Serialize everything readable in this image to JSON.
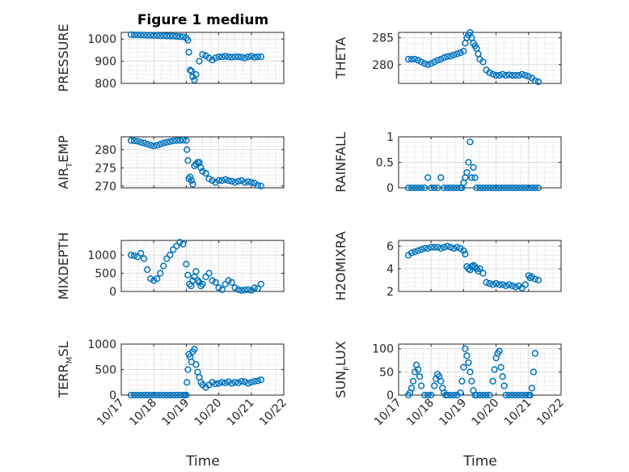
{
  "chart_data": {
    "type": "scatter",
    "title": "Figure 1 medium",
    "xlabel": "Time",
    "x_ticks": [
      "10/17",
      "10/18",
      "10/19",
      "10/20",
      "10/21",
      "10/22"
    ],
    "x_tick_values": [
      0,
      1,
      2,
      3,
      4,
      5
    ],
    "xlim": [
      0,
      5
    ],
    "marker_color": "#0072BD",
    "grid": true,
    "panels": [
      {
        "name": "pressure",
        "ylabel": "PRESSURE",
        "ylim": [
          800,
          1030
        ],
        "yticks": [
          800,
          900,
          1000
        ],
        "x": [
          0.3,
          0.4,
          0.5,
          0.6,
          0.7,
          0.8,
          0.9,
          1.0,
          1.1,
          1.2,
          1.3,
          1.4,
          1.5,
          1.6,
          1.7,
          1.8,
          1.9,
          2.0,
          2.05,
          2.08,
          2.12,
          2.16,
          2.2,
          2.25,
          2.3,
          2.4,
          2.5,
          2.6,
          2.7,
          2.8,
          2.9,
          3.0,
          3.1,
          3.2,
          3.3,
          3.4,
          3.5,
          3.6,
          3.7,
          3.8,
          3.9,
          4.0,
          4.1,
          4.2,
          4.3
        ],
        "y": [
          1020,
          1019,
          1019,
          1018,
          1018,
          1017,
          1017,
          1016,
          1016,
          1015,
          1015,
          1014,
          1014,
          1013,
          1012,
          1011,
          1010,
          1005,
          995,
          940,
          860,
          855,
          830,
          815,
          840,
          900,
          930,
          925,
          915,
          905,
          915,
          920,
          920,
          922,
          920,
          918,
          920,
          920,
          918,
          915,
          920,
          922,
          918,
          920,
          920
        ]
      },
      {
        "name": "theta",
        "ylabel": "THETA",
        "ylim": [
          276.5,
          286
        ],
        "yticks": [
          280,
          285
        ],
        "x": [
          0.3,
          0.4,
          0.5,
          0.6,
          0.7,
          0.8,
          0.9,
          1.0,
          1.1,
          1.2,
          1.3,
          1.4,
          1.5,
          1.6,
          1.7,
          1.8,
          1.9,
          2.0,
          2.05,
          2.1,
          2.15,
          2.2,
          2.25,
          2.3,
          2.35,
          2.4,
          2.45,
          2.5,
          2.6,
          2.7,
          2.8,
          2.9,
          3.0,
          3.1,
          3.2,
          3.3,
          3.4,
          3.5,
          3.6,
          3.7,
          3.8,
          3.9,
          4.0,
          4.1,
          4.2,
          4.3
        ],
        "y": [
          281.0,
          281.0,
          281.0,
          280.8,
          280.5,
          280.2,
          280.0,
          280.2,
          280.5,
          280.8,
          281.0,
          281.3,
          281.5,
          281.6,
          281.8,
          282.0,
          282.2,
          282.5,
          284.0,
          285.0,
          285.5,
          286.0,
          285.0,
          284.0,
          283.5,
          283.0,
          282.0,
          281.0,
          280.5,
          279.0,
          278.5,
          278.2,
          278.0,
          278.0,
          278.2,
          278.0,
          278.1,
          278.0,
          278.0,
          278.0,
          278.2,
          278.0,
          277.8,
          277.5,
          277.0,
          276.8
        ]
      },
      {
        "name": "air-temp",
        "ylabel": "AIR",
        "ylabel_sub": "T",
        "ylabel_tail": "EMP",
        "ylim": [
          269.5,
          283.5
        ],
        "yticks": [
          270,
          275,
          280
        ],
        "x": [
          0.3,
          0.4,
          0.5,
          0.6,
          0.7,
          0.8,
          0.9,
          1.0,
          1.1,
          1.2,
          1.3,
          1.4,
          1.5,
          1.6,
          1.7,
          1.8,
          1.9,
          2.0,
          2.02,
          2.05,
          2.08,
          2.12,
          2.16,
          2.2,
          2.25,
          2.3,
          2.35,
          2.4,
          2.45,
          2.5,
          2.6,
          2.7,
          2.8,
          2.9,
          3.0,
          3.1,
          3.2,
          3.3,
          3.4,
          3.5,
          3.6,
          3.7,
          3.8,
          3.9,
          4.0,
          4.1,
          4.2,
          4.3
        ],
        "y": [
          282.5,
          282.4,
          282.3,
          282.0,
          281.8,
          281.5,
          281.2,
          281.0,
          281.2,
          281.5,
          281.8,
          282.0,
          282.2,
          282.4,
          282.5,
          282.5,
          282.6,
          282.5,
          280.0,
          277.0,
          272.0,
          272.5,
          271.5,
          270.5,
          275.5,
          276.0,
          276.5,
          276.5,
          275.0,
          274.0,
          273.5,
          272.0,
          271.5,
          271.0,
          271.5,
          271.5,
          271.8,
          271.5,
          271.3,
          271.0,
          271.3,
          271.5,
          271.0,
          271.2,
          271.0,
          270.8,
          270.2,
          270.0
        ]
      },
      {
        "name": "rainfall",
        "ylabel": "RAINFALL",
        "ylim": [
          0,
          1
        ],
        "yticks": [
          0,
          0.5,
          1
        ],
        "x": [
          0.3,
          0.4,
          0.5,
          0.6,
          0.7,
          0.8,
          0.9,
          1.0,
          1.1,
          1.2,
          1.3,
          1.4,
          1.5,
          1.6,
          1.7,
          1.8,
          1.9,
          1.95,
          2.0,
          2.05,
          2.1,
          2.15,
          2.2,
          2.25,
          2.3,
          2.35,
          2.4,
          2.5,
          2.6,
          2.7,
          2.8,
          2.9,
          3.0,
          3.1,
          3.2,
          3.3,
          3.4,
          3.5,
          3.6,
          3.7,
          3.8,
          3.9,
          4.0,
          4.1,
          4.2,
          4.3
        ],
        "y": [
          0,
          0,
          0,
          0,
          0,
          0,
          0.2,
          0,
          0,
          0,
          0.2,
          0,
          0,
          0,
          0,
          0,
          0,
          0,
          0.1,
          0.2,
          0.3,
          0.5,
          0.9,
          0.2,
          0.4,
          0.2,
          0,
          0,
          0,
          0,
          0,
          0,
          0,
          0,
          0,
          0,
          0,
          0,
          0,
          0,
          0,
          0,
          0,
          0,
          0,
          0
        ]
      },
      {
        "name": "mixdepth",
        "ylabel": "MIXDEPTH",
        "ylim": [
          0,
          1400
        ],
        "yticks": [
          0,
          500,
          1000
        ],
        "x": [
          0.3,
          0.4,
          0.5,
          0.6,
          0.7,
          0.8,
          0.9,
          1.0,
          1.1,
          1.2,
          1.3,
          1.4,
          1.5,
          1.6,
          1.7,
          1.8,
          1.9,
          2.0,
          2.05,
          2.1,
          2.15,
          2.2,
          2.25,
          2.3,
          2.35,
          2.4,
          2.45,
          2.5,
          2.6,
          2.7,
          2.8,
          2.9,
          3.0,
          3.1,
          3.2,
          3.3,
          3.4,
          3.5,
          3.6,
          3.7,
          3.8,
          3.9,
          4.0,
          4.1,
          4.2,
          4.3
        ],
        "y": [
          1000,
          980,
          950,
          1050,
          900,
          600,
          350,
          300,
          350,
          500,
          700,
          900,
          1000,
          1150,
          1250,
          1350,
          1300,
          750,
          450,
          200,
          150,
          300,
          400,
          550,
          300,
          250,
          150,
          200,
          400,
          500,
          300,
          250,
          100,
          50,
          200,
          300,
          250,
          100,
          50,
          30,
          40,
          50,
          30,
          100,
          80,
          200
        ]
      },
      {
        "name": "h2omixra",
        "ylabel": "H2OMIXRA",
        "ylim": [
          2,
          6.5
        ],
        "yticks": [
          2,
          4,
          6
        ],
        "x": [
          0.3,
          0.4,
          0.5,
          0.6,
          0.7,
          0.8,
          0.9,
          1.0,
          1.1,
          1.2,
          1.3,
          1.4,
          1.5,
          1.6,
          1.7,
          1.8,
          1.9,
          2.0,
          2.05,
          2.1,
          2.15,
          2.2,
          2.25,
          2.3,
          2.35,
          2.4,
          2.45,
          2.5,
          2.6,
          2.7,
          2.8,
          2.9,
          3.0,
          3.1,
          3.2,
          3.3,
          3.4,
          3.5,
          3.6,
          3.7,
          3.8,
          3.9,
          4.0,
          4.05,
          4.1,
          4.2,
          4.3
        ],
        "y": [
          5.2,
          5.4,
          5.5,
          5.6,
          5.7,
          5.8,
          5.8,
          5.9,
          5.9,
          5.9,
          5.8,
          5.9,
          6.0,
          5.9,
          5.8,
          5.9,
          5.8,
          5.6,
          5.3,
          4.2,
          4.0,
          3.9,
          4.2,
          4.3,
          4.2,
          4.0,
          3.8,
          4.0,
          3.6,
          2.8,
          2.7,
          2.6,
          2.7,
          2.6,
          2.6,
          2.5,
          2.6,
          2.5,
          2.4,
          2.5,
          2.3,
          2.6,
          3.4,
          3.2,
          3.3,
          3.1,
          3.0
        ]
      },
      {
        "name": "terr-msl",
        "ylabel": "TERR",
        "ylabel_sub": "M",
        "ylabel_tail": "SL",
        "ylim": [
          0,
          1000
        ],
        "yticks": [
          0,
          500,
          1000
        ],
        "x": [
          0.3,
          0.4,
          0.5,
          0.6,
          0.7,
          0.8,
          0.9,
          1.0,
          1.1,
          1.2,
          1.3,
          1.4,
          1.5,
          1.6,
          1.7,
          1.8,
          1.9,
          1.95,
          2.0,
          2.02,
          2.05,
          2.08,
          2.12,
          2.16,
          2.2,
          2.25,
          2.3,
          2.35,
          2.4,
          2.45,
          2.5,
          2.6,
          2.7,
          2.8,
          2.9,
          3.0,
          3.1,
          3.2,
          3.3,
          3.4,
          3.5,
          3.6,
          3.7,
          3.8,
          3.9,
          4.0,
          4.1,
          4.2,
          4.3
        ],
        "y": [
          0,
          0,
          0,
          0,
          0,
          0,
          0,
          0,
          0,
          0,
          0,
          0,
          0,
          0,
          0,
          0,
          0,
          0,
          0,
          250,
          500,
          800,
          750,
          650,
          850,
          900,
          600,
          450,
          350,
          250,
          200,
          150,
          200,
          250,
          220,
          230,
          250,
          240,
          260,
          230,
          250,
          240,
          270,
          260,
          230,
          250,
          270,
          280,
          300
        ]
      },
      {
        "name": "sun-flux",
        "ylabel": "SUN",
        "ylabel_sub": "F",
        "ylabel_tail": "LUX",
        "ylim": [
          0,
          110
        ],
        "yticks": [
          0,
          50,
          100
        ],
        "x": [
          0.3,
          0.35,
          0.4,
          0.45,
          0.5,
          0.55,
          0.6,
          0.65,
          0.7,
          0.8,
          0.9,
          1.0,
          1.1,
          1.15,
          1.2,
          1.25,
          1.3,
          1.35,
          1.4,
          1.45,
          1.5,
          1.6,
          1.7,
          1.8,
          1.9,
          1.95,
          2.0,
          2.05,
          2.1,
          2.15,
          2.2,
          2.25,
          2.3,
          2.35,
          2.4,
          2.5,
          2.6,
          2.7,
          2.8,
          2.9,
          2.95,
          3.0,
          3.05,
          3.1,
          3.15,
          3.2,
          3.25,
          3.3,
          3.4,
          3.5,
          3.6,
          3.7,
          3.8,
          3.9,
          4.0,
          4.05,
          4.1,
          4.15,
          4.2
        ],
        "y": [
          0,
          5,
          15,
          30,
          50,
          65,
          55,
          40,
          20,
          0,
          0,
          0,
          20,
          35,
          45,
          40,
          30,
          15,
          5,
          0,
          0,
          0,
          0,
          0,
          5,
          30,
          60,
          100,
          85,
          70,
          50,
          30,
          10,
          0,
          0,
          0,
          0,
          0,
          0,
          30,
          55,
          80,
          90,
          95,
          60,
          40,
          20,
          0,
          0,
          0,
          0,
          0,
          0,
          0,
          0,
          0,
          15,
          50,
          90
        ]
      }
    ]
  }
}
